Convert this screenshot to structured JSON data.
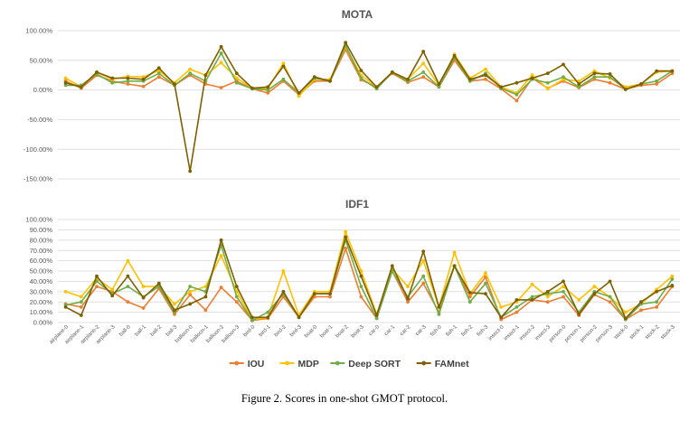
{
  "figure": {
    "caption": "Figure 2. Scores in one-shot GMOT protocol.",
    "colors": {
      "IOU": "#ED7D31",
      "MDP": "#FFC000",
      "Deep SORT": "#70AD47",
      "FAMnet": "#7F6000"
    }
  },
  "chart_data": [
    {
      "type": "line",
      "title": "MOTA",
      "categories": [
        "airplane-0",
        "airplane-1",
        "airplane-2",
        "airplane-3",
        "ball-0",
        "ball-1",
        "ball-2",
        "ball-3",
        "balloon-0",
        "balloon-1",
        "balloon-2",
        "balloon-3",
        "bird-0",
        "bird-1",
        "bird-2",
        "bird-3",
        "boat-0",
        "boat-1",
        "boat-2",
        "boat-3",
        "car-0",
        "car-1",
        "car-2",
        "car-3",
        "fish-0",
        "fish-1",
        "fish-2",
        "fish-3",
        "insect-0",
        "insect-1",
        "insect-2",
        "insect-3",
        "person-0",
        "person-1",
        "person-2",
        "person-3",
        "stock-0",
        "stock-1",
        "stock-2",
        "stock-3"
      ],
      "ylim": [
        -150,
        100
      ],
      "yticks": [
        "-150.00%",
        "-100.00%",
        "-50.00%",
        "0.00%",
        "50.00%",
        "100.00%"
      ],
      "grid": true,
      "legend": "bottom",
      "series": [
        {
          "name": "IOU",
          "values": [
            15,
            3,
            25,
            15,
            10,
            6,
            22,
            8,
            25,
            10,
            4,
            15,
            2,
            -5,
            15,
            -8,
            15,
            15,
            68,
            17,
            5,
            28,
            13,
            22,
            5,
            50,
            15,
            18,
            2,
            -18,
            20,
            3,
            15,
            4,
            18,
            12,
            1,
            8,
            10,
            28
          ]
        },
        {
          "name": "MDP",
          "values": [
            20,
            5,
            30,
            18,
            23,
            22,
            33,
            12,
            35,
            25,
            46,
            20,
            3,
            2,
            45,
            -10,
            18,
            18,
            73,
            25,
            5,
            30,
            18,
            45,
            8,
            60,
            20,
            35,
            5,
            -5,
            25,
            2,
            18,
            15,
            32,
            20,
            5,
            10,
            30,
            32
          ]
        },
        {
          "name": "Deep SORT",
          "values": [
            8,
            8,
            27,
            12,
            15,
            15,
            28,
            8,
            28,
            15,
            62,
            12,
            2,
            0,
            18,
            -5,
            20,
            15,
            75,
            20,
            2,
            30,
            15,
            30,
            5,
            55,
            15,
            28,
            3,
            -8,
            18,
            12,
            22,
            5,
            22,
            22,
            1,
            10,
            15,
            32
          ]
        },
        {
          "name": "FAMnet",
          "values": [
            12,
            5,
            30,
            20,
            20,
            18,
            37,
            10,
            -137,
            25,
            73,
            28,
            3,
            5,
            40,
            -5,
            22,
            15,
            80,
            33,
            5,
            30,
            18,
            65,
            10,
            58,
            18,
            25,
            5,
            12,
            20,
            28,
            43,
            10,
            28,
            27,
            1,
            10,
            32,
            32
          ]
        }
      ]
    },
    {
      "type": "line",
      "title": "IDF1",
      "categories": [
        "airplane-0",
        "airplane-1",
        "airplane-2",
        "airplane-3",
        "ball-0",
        "ball-1",
        "ball-2",
        "ball-3",
        "balloon-0",
        "balloon-1",
        "balloon-2",
        "balloon-3",
        "bird-0",
        "bird-1",
        "bird-2",
        "bird-3",
        "boat-0",
        "boat-1",
        "boat-2",
        "boat-3",
        "car-0",
        "car-1",
        "car-2",
        "car-3",
        "fish-0",
        "fish-1",
        "fish-2",
        "fish-3",
        "insect-0",
        "insect-1",
        "insect-2",
        "insect-3",
        "person-0",
        "person-1",
        "person-2",
        "person-3",
        "stock-0",
        "stock-1",
        "stock-2",
        "stock-3"
      ],
      "ylim": [
        0,
        100
      ],
      "yticks": [
        "0.00%",
        "10.00%",
        "20.00%",
        "30.00%",
        "40.00%",
        "50.00%",
        "60.00%",
        "70.00%",
        "80.00%",
        "90.00%",
        "100.00%"
      ],
      "grid": true,
      "legend": "bottom",
      "series": [
        {
          "name": "IOU",
          "values": [
            18,
            15,
            35,
            30,
            20,
            14,
            33,
            8,
            27,
            12,
            34,
            20,
            2,
            4,
            25,
            5,
            25,
            25,
            72,
            25,
            4,
            50,
            20,
            38,
            10,
            55,
            25,
            44,
            3,
            10,
            22,
            20,
            25,
            7,
            27,
            20,
            3,
            12,
            15,
            35
          ]
        },
        {
          "name": "MDP",
          "values": [
            30,
            25,
            43,
            32,
            60,
            35,
            35,
            18,
            30,
            35,
            65,
            30,
            3,
            5,
            50,
            7,
            30,
            30,
            88,
            50,
            8,
            52,
            35,
            60,
            15,
            68,
            28,
            48,
            15,
            20,
            37,
            25,
            35,
            22,
            35,
            25,
            10,
            18,
            32,
            45
          ]
        },
        {
          "name": "Deep SORT",
          "values": [
            17,
            20,
            40,
            28,
            35,
            25,
            35,
            10,
            35,
            30,
            75,
            25,
            2,
            10,
            28,
            5,
            28,
            28,
            80,
            35,
            4,
            50,
            25,
            45,
            8,
            55,
            20,
            38,
            5,
            15,
            25,
            28,
            30,
            10,
            30,
            25,
            3,
            18,
            20,
            42
          ]
        },
        {
          "name": "FAMnet",
          "values": [
            15,
            7,
            45,
            26,
            45,
            24,
            38,
            12,
            18,
            25,
            80,
            35,
            5,
            5,
            30,
            5,
            28,
            28,
            83,
            45,
            7,
            55,
            23,
            69,
            15,
            55,
            29,
            28,
            5,
            22,
            22,
            30,
            40,
            8,
            28,
            40,
            4,
            20,
            30,
            36
          ]
        }
      ]
    }
  ]
}
